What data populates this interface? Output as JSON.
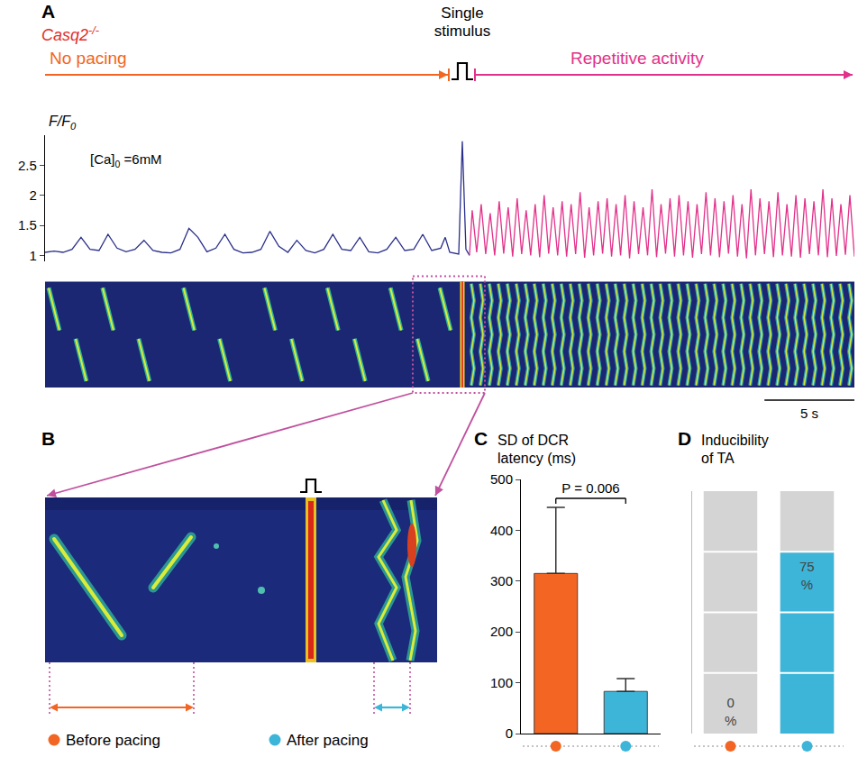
{
  "chart_data": [
    {
      "panel": "A",
      "type": "line",
      "annotations": [
        {
          "text": "Casq2-/-",
          "color": "#e0302a"
        },
        {
          "text": "No pacing",
          "color": "#f26522"
        },
        {
          "text": "Single stimulus",
          "color": "#000000"
        },
        {
          "text": "Repetitive activity",
          "color": "#e2318a"
        },
        {
          "text": "[Ca]0 =6mM",
          "color": "#000000"
        }
      ],
      "ylabel": "F/F0",
      "series": [
        {
          "color": "#2a2f8a",
          "x": [
            0,
            0.5,
            1,
            1.5,
            2,
            2.5,
            3,
            3.5,
            4,
            4.5,
            5,
            5.5,
            6,
            6.5,
            7,
            7.5,
            8,
            8.5,
            9,
            9.5,
            10,
            10.5,
            11,
            11.5,
            12,
            12.5,
            13,
            13.5,
            14,
            14.5,
            15,
            15.5,
            16,
            16.5,
            17,
            17.5,
            18,
            18.5,
            19,
            19.5,
            20,
            20.5,
            21,
            21.5,
            22,
            22.25,
            22.5,
            23,
            23.2,
            23.4,
            23.6
          ],
          "values": [
            1.05,
            1.07,
            1.05,
            1.1,
            1.3,
            1.1,
            1.08,
            1.35,
            1.12,
            1.06,
            1.1,
            1.25,
            1.08,
            1.05,
            1.04,
            1.1,
            1.45,
            1.3,
            1.06,
            1.12,
            1.35,
            1.1,
            1.04,
            1.05,
            1.1,
            1.4,
            1.15,
            1.05,
            1.25,
            1.08,
            1.04,
            1.1,
            1.35,
            1.1,
            1.08,
            1.3,
            1.06,
            1.04,
            1.1,
            1.3,
            1.08,
            1.1,
            1.35,
            1.08,
            1.12,
            1.3,
            1.05,
            1.02,
            2.9,
            1.1,
            1.0
          ]
        },
        {
          "color": "#e2318a",
          "x": [
            23.6,
            23.75,
            24,
            24.25,
            24.5,
            24.75,
            25,
            25.25,
            25.5,
            25.75,
            26,
            26.25,
            26.5,
            26.75,
            27,
            27.25,
            27.5,
            27.75,
            28,
            28.25,
            28.5,
            28.75,
            29,
            29.25,
            29.5,
            29.75,
            30,
            30.25,
            30.5,
            30.75,
            31,
            31.25,
            31.5,
            31.75,
            32,
            32.25,
            32.5,
            32.75,
            33,
            33.25,
            33.5,
            33.75,
            34,
            34.25,
            34.5,
            34.75,
            35,
            35.25,
            35.5,
            35.75,
            36,
            36.25,
            36.5,
            36.75,
            37,
            37.25,
            37.5,
            37.75,
            38,
            38.25,
            38.5,
            38.75,
            39,
            39.25,
            39.5,
            39.75,
            40,
            40.25,
            40.5,
            40.75,
            41,
            41.25,
            41.5,
            41.75,
            42,
            42.25,
            42.5,
            42.75,
            43,
            43.25,
            43.5,
            43.75,
            44,
            44.25,
            44.5,
            44.75,
            45
          ],
          "values": [
            1.0,
            1.75,
            1.05,
            1.85,
            1.02,
            1.7,
            1.0,
            1.9,
            1.03,
            1.8,
            0.98,
            1.95,
            1.02,
            1.75,
            1.0,
            1.85,
            0.97,
            2.0,
            1.03,
            1.8,
            1.0,
            1.9,
            0.98,
            1.85,
            1.02,
            2.05,
            0.96,
            1.8,
            1.0,
            1.9,
            1.03,
            1.95,
            0.98,
            1.85,
            1.0,
            2.0,
            0.95,
            1.9,
            1.02,
            1.8,
            1.0,
            2.1,
            0.97,
            1.85,
            1.03,
            1.95,
            0.98,
            2.0,
            1.0,
            1.9,
            0.96,
            1.85,
            1.02,
            2.05,
            1.0,
            1.95,
            0.97,
            1.9,
            1.03,
            2.0,
            0.98,
            1.85,
            0.95,
            2.1,
            1.0,
            1.95,
            1.02,
            1.9,
            0.97,
            2.05,
            1.0,
            1.85,
            0.98,
            2.0,
            0.96,
            1.95,
            1.02,
            1.9,
            1.0,
            2.1,
            0.97,
            1.95,
            0.99,
            1.85,
            1.01,
            2.0,
            0.98
          ]
        }
      ],
      "xlim": [
        0,
        45
      ],
      "ylim": [
        0.9,
        3.0
      ],
      "yticks": [
        1,
        1.5,
        2,
        2.5
      ],
      "grid": false,
      "tick_labels": "y",
      "scale_bar": {
        "value": 5,
        "label": "5 s"
      }
    },
    {
      "panel": "B",
      "type": "linescan",
      "series": [
        {
          "name": "Before pacing",
          "color": "#f26522"
        },
        {
          "name": "After pacing",
          "color": "#3db5d8"
        }
      ]
    },
    {
      "panel": "C",
      "type": "bar",
      "title": "SD of DCR latency (ms)",
      "categories": [
        null,
        null
      ],
      "values": [
        315,
        83
      ],
      "errors": [
        130,
        25
      ],
      "colors": [
        "#f26522",
        "#3db5d8"
      ],
      "ylim": [
        0,
        500
      ],
      "yticks": [
        0,
        100,
        200,
        300,
        400,
        500
      ],
      "grid": false,
      "tick_labels": "y",
      "annotations": [
        {
          "text": "P = 0.006",
          "color": "#000000"
        }
      ]
    },
    {
      "panel": "D",
      "type": "bar",
      "title": "Inducibility of TA",
      "categories": [
        null,
        null
      ],
      "values": [
        0,
        75
      ],
      "value_labels": [
        "0 %",
        "75 %"
      ],
      "data_labels": true,
      "colors": [
        "#f26522",
        "#3db5d8"
      ],
      "ylim": [
        0,
        100
      ],
      "yticks": [
        25,
        50,
        75
      ],
      "grid": true,
      "tick_labels": false
    }
  ]
}
